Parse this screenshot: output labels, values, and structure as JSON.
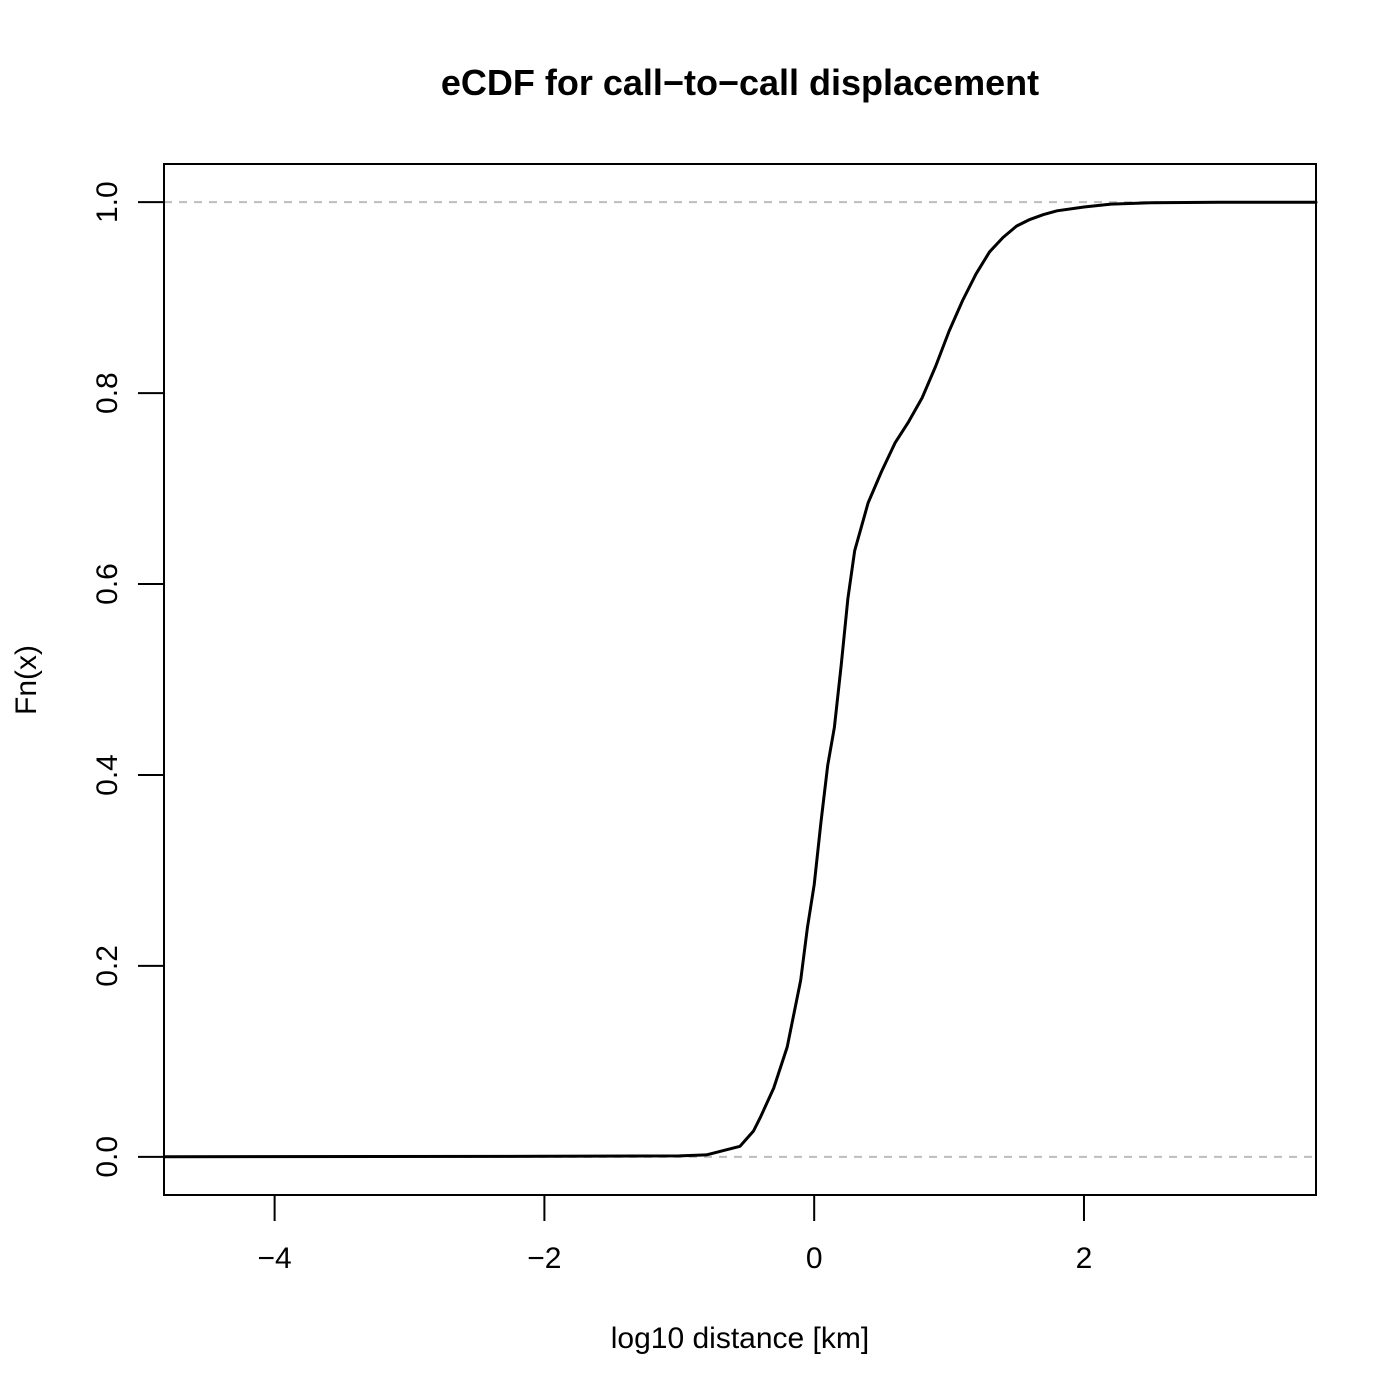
{
  "chart_data": {
    "type": "line",
    "title": "eCDF for call−to−call displacement",
    "xlabel": "log10 distance [km]",
    "ylabel": "Fn(x)",
    "xlim": [
      -4.82,
      3.72
    ],
    "ylim": [
      -0.04,
      1.04
    ],
    "x_ticks": [
      -4,
      -2,
      0,
      2
    ],
    "x_tick_labels": [
      "−4",
      "−2",
      "0",
      "2"
    ],
    "y_ticks": [
      0.0,
      0.2,
      0.4,
      0.6,
      0.8,
      1.0
    ],
    "y_tick_labels": [
      "0.0",
      "0.2",
      "0.4",
      "0.6",
      "0.8",
      "1.0"
    ],
    "grid": false,
    "reference_lines": [
      {
        "y": 0,
        "style": "dashed",
        "color": "#bdbdbd"
      },
      {
        "y": 1,
        "style": "dashed",
        "color": "#bdbdbd"
      }
    ],
    "series": [
      {
        "color": "#000000",
        "x": [
          -4.82,
          -2.0,
          -1.0,
          -0.8,
          -0.55,
          -0.45,
          -0.4,
          -0.3,
          -0.2,
          -0.1,
          -0.05,
          0.0,
          0.05,
          0.1,
          0.15,
          0.2,
          0.25,
          0.3,
          0.35,
          0.4,
          0.5,
          0.6,
          0.7,
          0.8,
          0.9,
          1.0,
          1.1,
          1.2,
          1.3,
          1.4,
          1.5,
          1.6,
          1.7,
          1.8,
          2.0,
          2.2,
          2.5,
          3.0,
          3.72
        ],
        "y": [
          0.0,
          0.0005,
          0.001,
          0.002,
          0.011,
          0.027,
          0.041,
          0.072,
          0.115,
          0.185,
          0.24,
          0.285,
          0.35,
          0.41,
          0.45,
          0.515,
          0.585,
          0.635,
          0.66,
          0.685,
          0.718,
          0.748,
          0.77,
          0.795,
          0.828,
          0.865,
          0.897,
          0.925,
          0.948,
          0.963,
          0.975,
          0.982,
          0.987,
          0.991,
          0.995,
          0.998,
          0.9995,
          1.0,
          1.0
        ]
      }
    ]
  }
}
